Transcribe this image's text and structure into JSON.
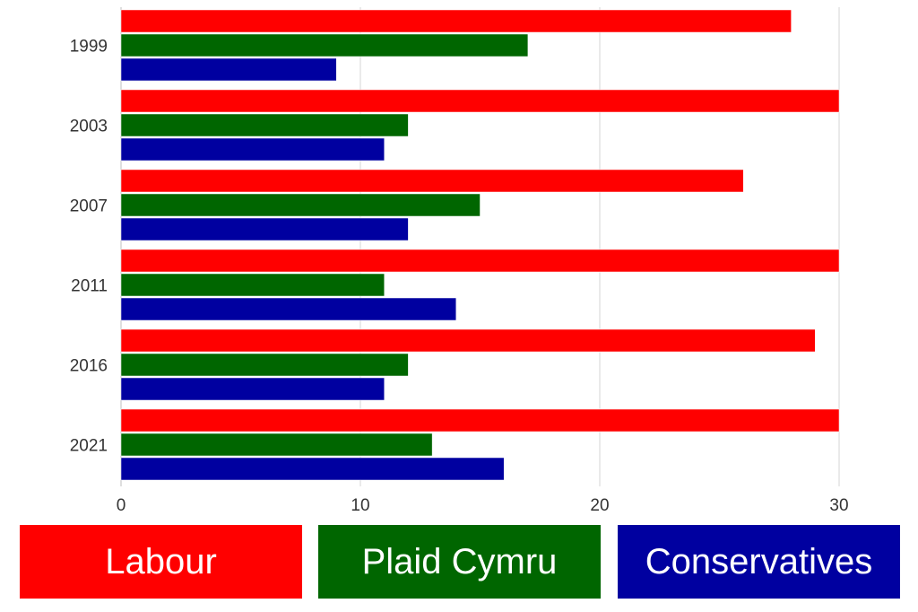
{
  "chart_data": {
    "type": "bar",
    "orientation": "horizontal",
    "categories": [
      "1999",
      "2003",
      "2007",
      "2011",
      "2016",
      "2021"
    ],
    "series": [
      {
        "name": "Labour",
        "color": "#ff0000",
        "values": [
          28,
          30,
          26,
          30,
          29,
          30
        ]
      },
      {
        "name": "Plaid Cymru",
        "color": "#006600",
        "values": [
          17,
          12,
          15,
          11,
          12,
          13
        ]
      },
      {
        "name": "Conservatives",
        "color": "#0000a0",
        "values": [
          9,
          11,
          12,
          14,
          11,
          16
        ]
      }
    ],
    "x_ticks": [
      "0",
      "10",
      "20",
      "30"
    ],
    "xlim": [
      0,
      30
    ],
    "grid": true,
    "legend_position": "bottom"
  },
  "legend": {
    "labour": "Labour",
    "plaid": "Plaid Cymru",
    "conservatives": "Conservatives"
  }
}
